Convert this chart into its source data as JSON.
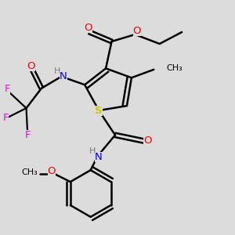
{
  "background_color": "#dcdcdc",
  "atom_colors": {
    "C": "#000000",
    "H": "#7a7a7a",
    "N": "#0000ff",
    "O": "#ff0000",
    "S": "#cccc00",
    "F": "#ff00ff"
  },
  "bond_color": "#000000",
  "figsize": [
    3.0,
    3.0
  ],
  "dpi": 100
}
